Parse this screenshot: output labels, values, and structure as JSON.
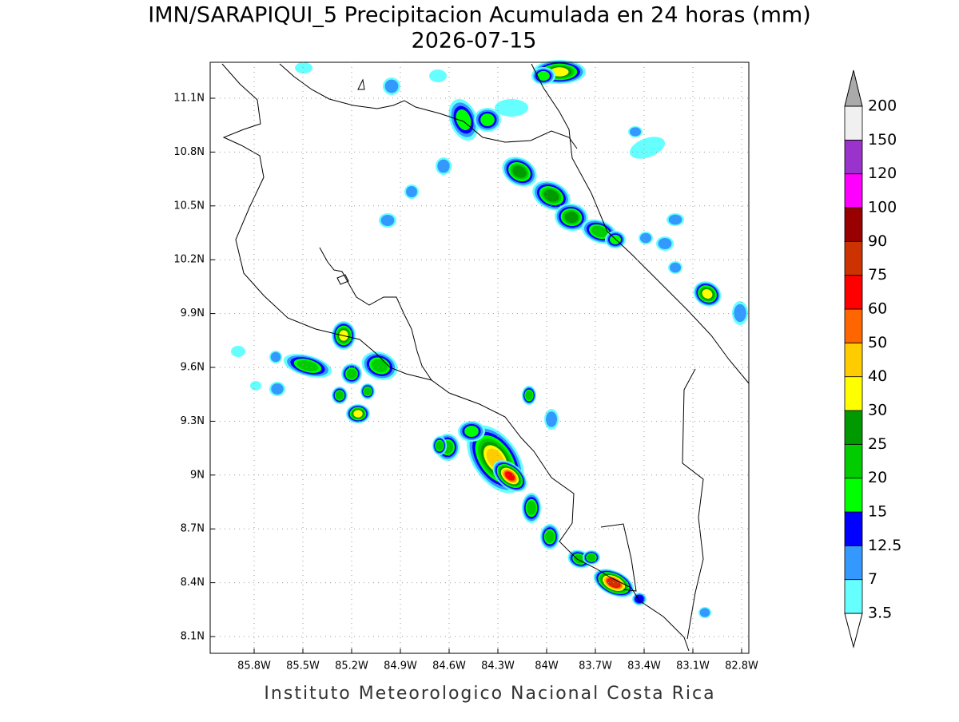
{
  "title": "IMN/SARAPIQUI_5 Precipitacion Acumulada en 24 horas (mm)",
  "subtitle": "2026-07-15",
  "map": {
    "xticks": [
      "85.8W",
      "85.5W",
      "85.2W",
      "84.9W",
      "84.6W",
      "84.3W",
      "84W",
      "83.7W",
      "83.4W",
      "83.1W",
      "82.8W"
    ],
    "yticks": [
      "11.1N",
      "10.8N",
      "10.5N",
      "10.2N",
      "9.9N",
      "9.6N",
      "9.3N",
      "9N",
      "8.7N",
      "8.4N",
      "8.1N"
    ]
  },
  "colorbar": {
    "levels": [
      3.5,
      7,
      12.5,
      15,
      20,
      25,
      30,
      40,
      50,
      60,
      75,
      90,
      100,
      120,
      150,
      200
    ],
    "colors": [
      "#66ffff",
      "#3399ff",
      "#0000ff",
      "#00ff00",
      "#00cc00",
      "#009900",
      "#ffff00",
      "#ffcc00",
      "#ff6600",
      "#ff0000",
      "#cc3300",
      "#990000",
      "#ff00ff",
      "#9933cc",
      "#f0f0f0"
    ],
    "over_color": "#aaaaaa",
    "under_color": "#ffffff"
  },
  "footer": "Instituto Meteorologico Nacional Costa Rica"
}
